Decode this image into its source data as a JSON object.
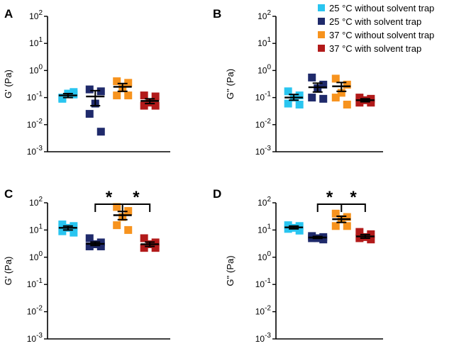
{
  "colors": {
    "c25_no_trap": "#29C5F0",
    "c25_trap": "#1F2A6B",
    "c37_no_trap": "#F7931E",
    "c37_trap": "#B21A1A"
  },
  "legend": [
    {
      "label": "25 °C without solvent trap",
      "color_key": "c25_no_trap"
    },
    {
      "label": "25 °C with solvent trap",
      "color_key": "c25_trap"
    },
    {
      "label": "37 °C without solvent trap",
      "color_key": "c37_no_trap"
    },
    {
      "label": "37 °C with solvent trap",
      "color_key": "c37_trap"
    }
  ],
  "chart_data": [
    {
      "panel": "A",
      "type": "scatter",
      "ylabel": "G' (Pa)",
      "yscale": "log",
      "ylim": [
        0.001,
        100
      ],
      "yticks": [
        {
          "exp": "2",
          "value": 100
        },
        {
          "exp": "1",
          "value": 10
        },
        {
          "exp": "0",
          "value": 1
        },
        {
          "exp": "-1",
          "value": 0.1
        },
        {
          "exp": "-2",
          "value": 0.01
        },
        {
          "exp": "-3",
          "value": 0.001
        }
      ],
      "groups": [
        {
          "name": "25 °C without solvent trap",
          "color_key": "c25_no_trap",
          "points": [
            0.1,
            0.13,
            0.14,
            0.09,
            0.16
          ],
          "mean": 0.12,
          "sem_low": 0.1,
          "sem_high": 0.14
        },
        {
          "name": "25 °C with solvent trap",
          "color_key": "c25_trap",
          "points": [
            0.2,
            0.17,
            0.06,
            0.025,
            0.0055
          ],
          "mean": 0.11,
          "sem_low": 0.05,
          "sem_high": 0.18
        },
        {
          "name": "37 °C without solvent trap",
          "color_key": "c37_no_trap",
          "points": [
            0.4,
            0.35,
            0.22,
            0.12,
            0.12
          ],
          "mean": 0.25,
          "sem_low": 0.17,
          "sem_high": 0.33
        },
        {
          "name": "37 °C with solvent trap",
          "color_key": "c37_trap",
          "points": [
            0.12,
            0.11,
            0.065,
            0.05,
            0.05
          ],
          "mean": 0.075,
          "sem_low": 0.06,
          "sem_high": 0.09
        }
      ],
      "significance": []
    },
    {
      "panel": "B",
      "type": "scatter",
      "ylabel": "G'' (Pa)",
      "yscale": "log",
      "ylim": [
        0.001,
        100
      ],
      "yticks": [
        {
          "exp": "2",
          "value": 100
        },
        {
          "exp": "1",
          "value": 10
        },
        {
          "exp": "0",
          "value": 1
        },
        {
          "exp": "-1",
          "value": 0.1
        },
        {
          "exp": "-2",
          "value": 0.01
        },
        {
          "exp": "-3",
          "value": 0.001
        }
      ],
      "groups": [
        {
          "name": "25 °C without solvent trap",
          "color_key": "c25_no_trap",
          "points": [
            0.17,
            0.12,
            0.1,
            0.06,
            0.055
          ],
          "mean": 0.1,
          "sem_low": 0.08,
          "sem_high": 0.13
        },
        {
          "name": "25 °C with solvent trap",
          "color_key": "c25_trap",
          "points": [
            0.55,
            0.3,
            0.22,
            0.1,
            0.09
          ],
          "mean": 0.24,
          "sem_low": 0.16,
          "sem_high": 0.34
        },
        {
          "name": "37 °C without solvent trap",
          "color_key": "c37_no_trap",
          "points": [
            0.5,
            0.3,
            0.15,
            0.1,
            0.055
          ],
          "mean": 0.26,
          "sem_low": 0.17,
          "sem_high": 0.36
        },
        {
          "name": "37 °C with solvent trap",
          "color_key": "c37_trap",
          "points": [
            0.1,
            0.09,
            0.08,
            0.065,
            0.065
          ],
          "mean": 0.08,
          "sem_low": 0.07,
          "sem_high": 0.09
        }
      ],
      "significance": []
    },
    {
      "panel": "C",
      "type": "scatter",
      "ylabel": "G' (Pa)",
      "yscale": "log",
      "ylim": [
        0.001,
        100
      ],
      "yticks": [
        {
          "exp": "2",
          "value": 100
        },
        {
          "exp": "1",
          "value": 10
        },
        {
          "exp": "0",
          "value": 1
        },
        {
          "exp": "-1",
          "value": 0.1
        },
        {
          "exp": "-2",
          "value": 0.01
        },
        {
          "exp": "-3",
          "value": 0.001
        }
      ],
      "groups": [
        {
          "name": "25 °C without solvent trap",
          "color_key": "c25_no_trap",
          "points": [
            16,
            14,
            12,
            9,
            8
          ],
          "mean": 12,
          "sem_low": 10,
          "sem_high": 14
        },
        {
          "name": "25 °C with solvent trap",
          "color_key": "c25_trap",
          "points": [
            5,
            3.5,
            3,
            2.5,
            2.5
          ],
          "mean": 3.1,
          "sem_low": 2.7,
          "sem_high": 3.6
        },
        {
          "name": "37 °C without solvent trap",
          "color_key": "c37_no_trap",
          "points": [
            70,
            50,
            30,
            15,
            10
          ],
          "mean": 35,
          "sem_low": 24,
          "sem_high": 48
        },
        {
          "name": "37 °C with solvent trap",
          "color_key": "c37_trap",
          "points": [
            5,
            3.5,
            3,
            2.2,
            2.2
          ],
          "mean": 3,
          "sem_low": 2.5,
          "sem_high": 3.6
        }
      ],
      "significance": [
        {
          "from": 1,
          "to": 3,
          "center_group": 2,
          "y_value": 200,
          "label": "*"
        }
      ]
    },
    {
      "panel": "D",
      "type": "scatter",
      "ylabel": "G'' (Pa)",
      "yscale": "log",
      "ylim": [
        0.001,
        100
      ],
      "yticks": [
        {
          "exp": "2",
          "value": 100
        },
        {
          "exp": "1",
          "value": 10
        },
        {
          "exp": "0",
          "value": 1
        },
        {
          "exp": "-1",
          "value": 0.1
        },
        {
          "exp": "-2",
          "value": 0.01
        },
        {
          "exp": "-3",
          "value": 0.001
        }
      ],
      "groups": [
        {
          "name": "25 °C without solvent trap",
          "color_key": "c25_no_trap",
          "points": [
            15,
            14,
            12,
            11,
            9.5
          ],
          "mean": 12.5,
          "sem_low": 11,
          "sem_high": 14
        },
        {
          "name": "25 °C with solvent trap",
          "color_key": "c25_trap",
          "points": [
            6,
            5.5,
            5,
            5,
            4.5
          ],
          "mean": 5.3,
          "sem_low": 4.9,
          "sem_high": 5.8
        },
        {
          "name": "37 °C without solvent trap",
          "color_key": "c37_no_trap",
          "points": [
            40,
            30,
            25,
            14,
            14
          ],
          "mean": 25,
          "sem_low": 19,
          "sem_high": 32
        },
        {
          "name": "37 °C with solvent trap",
          "color_key": "c37_trap",
          "points": [
            8.5,
            7,
            5.5,
            5,
            4.5
          ],
          "mean": 5.8,
          "sem_low": 5,
          "sem_high": 6.8
        }
      ],
      "significance": [
        {
          "from": 1,
          "to": 3,
          "center_group": 2,
          "y_value": 200,
          "label": "*"
        }
      ]
    }
  ]
}
